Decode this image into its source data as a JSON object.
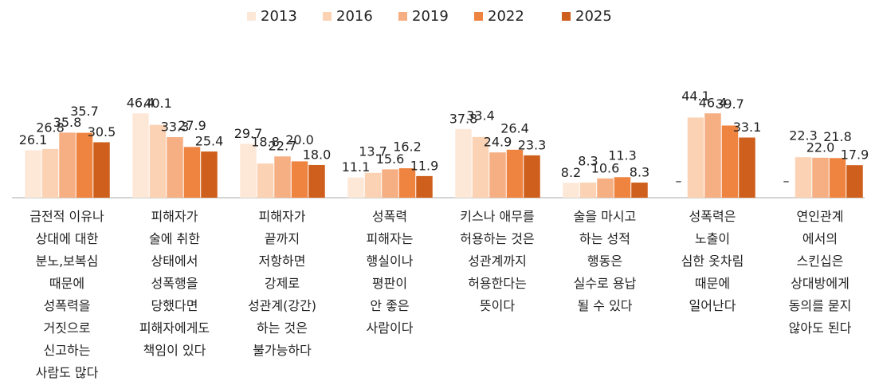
{
  "chart_data": {
    "type": "bar",
    "categories": [
      "금전적 이유나\n상대에 대한\n분노,보복심\n때문에\n성폭력을\n거짓으로\n신고하는\n사람도 많다",
      "피해자가\n술에 취한\n상태에서\n성폭행을\n당했다면\n피해자에게도\n책임이 있다",
      "피해자가\n끝까지\n저항하면\n강제로\n성관계(강간)\n하는 것은\n불가능하다",
      "성폭력\n피해자는\n행실이나\n평판이\n안 좋은\n사람이다",
      "키스나 애무를\n허용하는 것은\n성관계까지\n허용한다는\n뜻이다",
      "술을 마시고\n하는 성적\n행동은\n실수로 용납\n될 수 있다",
      "성폭력은\n노출이\n심한 옷차림\n때문에\n일어난다",
      "연인관계\n에서의\n스킨십은\n상대방에게\n동의를 묻지\n않아도 된다"
    ],
    "series": [
      {
        "name": "2013",
        "color": "#fde8d8",
        "values": [
          26.1,
          46.4,
          29.7,
          11.1,
          37.8,
          8.2,
          null,
          null
        ],
        "value_labels": [
          "26.1",
          "46.4",
          "29.7",
          "11.1",
          "37.8",
          "8.2",
          "–",
          "–"
        ]
      },
      {
        "name": "2016",
        "color": "#fbd3b4",
        "values": [
          26.8,
          40.1,
          18.8,
          13.7,
          33.4,
          8.3,
          44.1,
          22.3
        ],
        "value_labels": [
          "26.8",
          "40.1",
          "18.8",
          "13.7",
          "33.4",
          "8.3",
          "44.1",
          "22.3"
        ]
      },
      {
        "name": "2019",
        "color": "#f6ae83",
        "values": [
          35.8,
          33.3,
          22.7,
          15.6,
          24.9,
          10.6,
          46.4,
          22.0
        ],
        "value_labels": [
          "35.8",
          "33.3",
          "22.7",
          "15.6",
          "24.9",
          "10.6",
          "46.4",
          "22.0"
        ]
      },
      {
        "name": "2022",
        "color": "#ef8441",
        "values": [
          35.7,
          27.9,
          20.0,
          16.2,
          26.4,
          11.3,
          39.7,
          21.8
        ],
        "value_labels": [
          "35.7",
          "27.9",
          "20.0",
          "16.2",
          "26.4",
          "11.3",
          "39.7",
          "21.8"
        ]
      },
      {
        "name": "2025",
        "color": "#cf5f1c",
        "values": [
          30.5,
          25.4,
          18.0,
          11.9,
          23.3,
          8.3,
          33.1,
          17.9
        ],
        "value_labels": [
          "30.5",
          "25.4",
          "18.0",
          "11.9",
          "23.3",
          "8.3",
          "33.1",
          "17.9"
        ]
      }
    ],
    "ylim": [
      0,
      50
    ],
    "legend": "top"
  }
}
